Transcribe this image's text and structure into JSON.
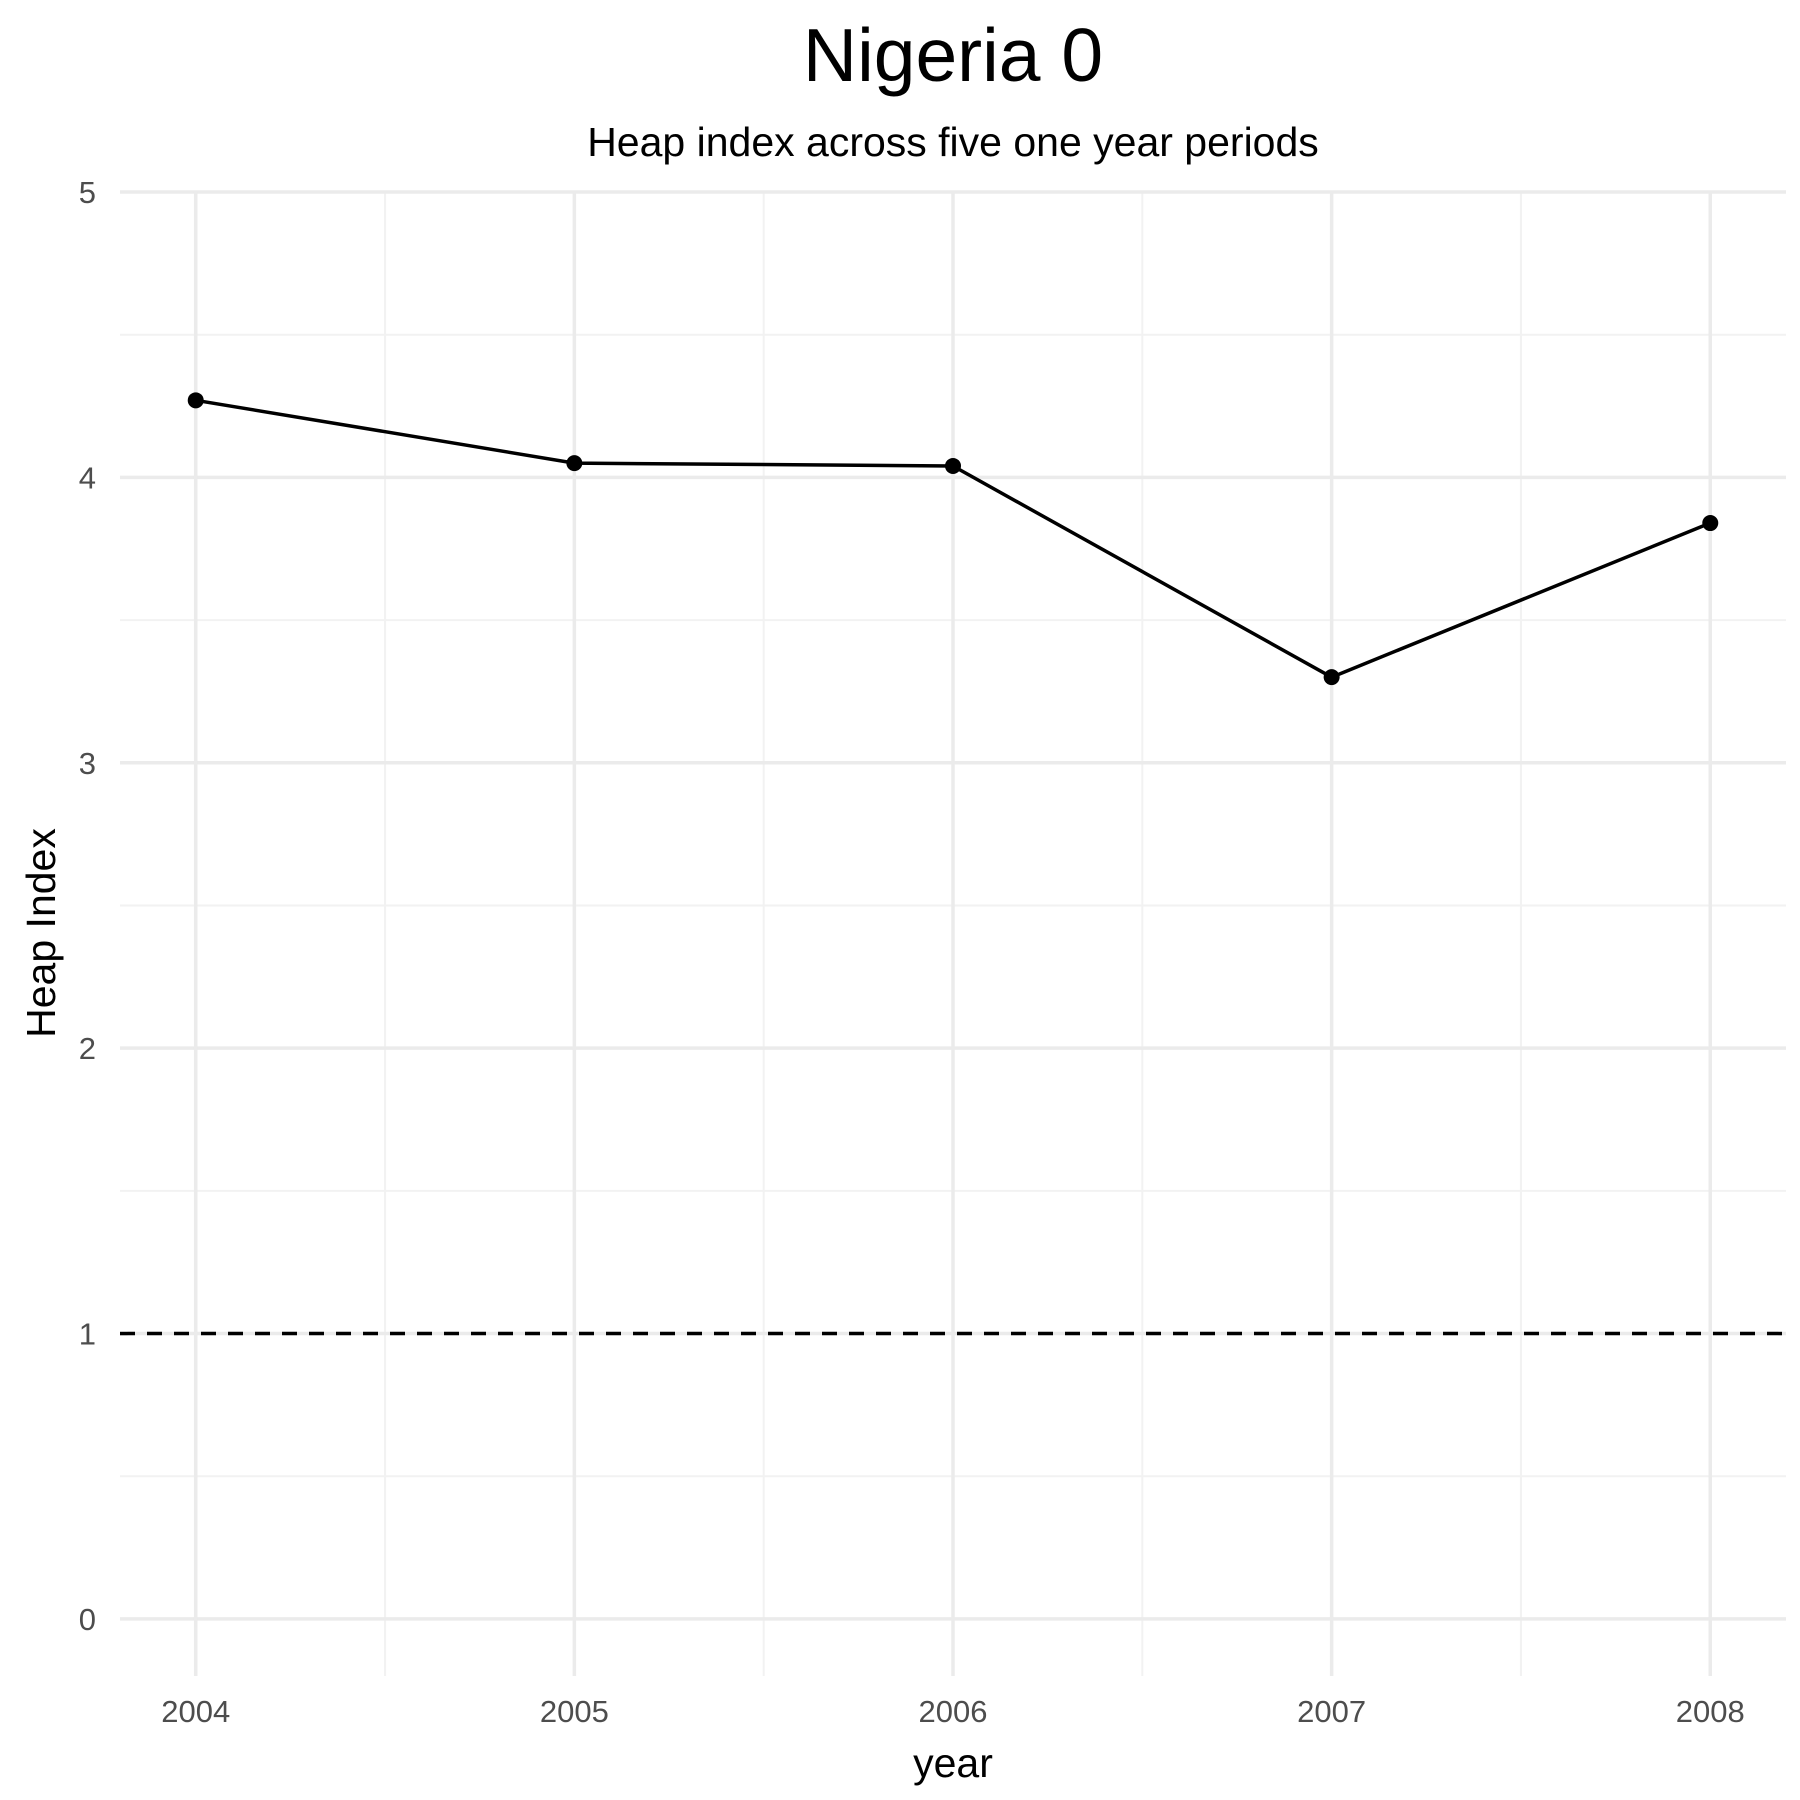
{
  "chart_data": {
    "type": "line",
    "title": "Nigeria 0",
    "subtitle": "Heap index across five one year periods",
    "xlabel": "year",
    "ylabel": "Heap Index",
    "x": [
      2004,
      2005,
      2006,
      2007,
      2008
    ],
    "series": [
      {
        "values": [
          4.27,
          4.05,
          4.04,
          3.3,
          3.84
        ],
        "color": "#000000",
        "markers": true
      }
    ],
    "reference_line": {
      "y": 1,
      "style": "dashed",
      "color": "#000000"
    },
    "xlim": [
      2003.8,
      2008.2
    ],
    "ylim": [
      -0.2,
      5
    ],
    "x_ticks": [
      2004,
      2005,
      2006,
      2007,
      2008
    ],
    "x_tick_labels": [
      "2004",
      "2005",
      "2006",
      "2007",
      "2008"
    ],
    "y_ticks": [
      0,
      1,
      2,
      3,
      4,
      5
    ],
    "y_tick_labels": [
      "0",
      "1",
      "2",
      "3",
      "4",
      "5"
    ],
    "y_minor_ticks": [
      0.5,
      1.5,
      2.5,
      3.5,
      4.5
    ],
    "x_minor_ticks": [
      2004.5,
      2005.5,
      2006.5,
      2007.5
    ],
    "grid": true,
    "legend": "none",
    "colors": {
      "background": "#ffffff",
      "grid_major": "#ebebeb",
      "grid_minor": "#f2f2f2",
      "tick_text": "#4d4d4d",
      "line": "#000000"
    }
  }
}
